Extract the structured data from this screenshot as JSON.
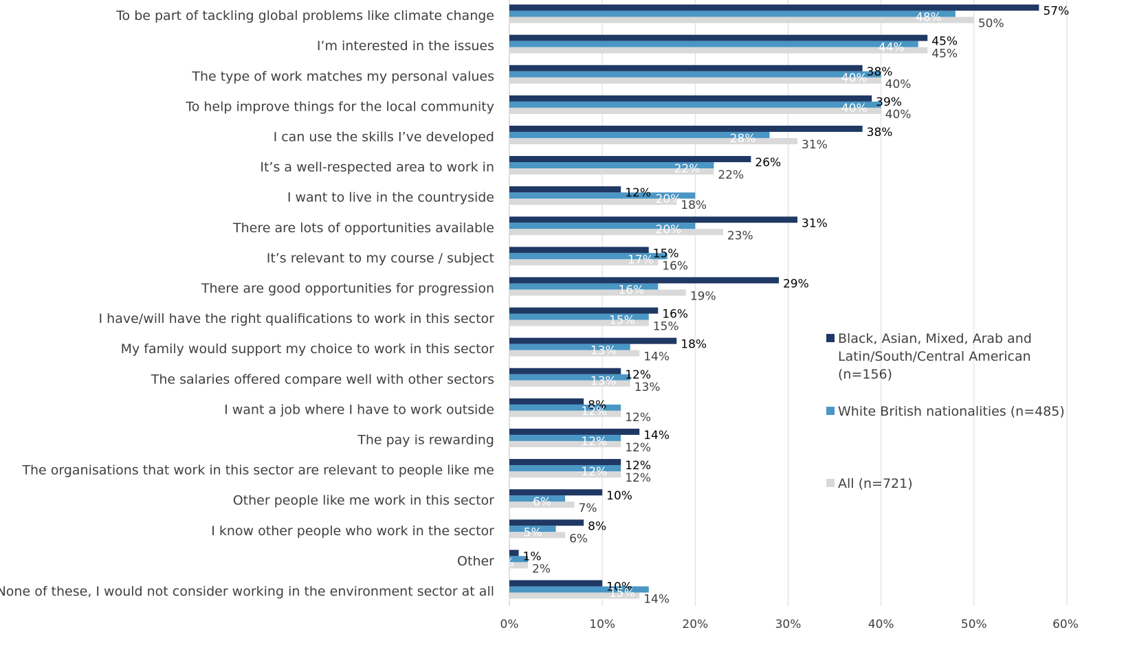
{
  "chart_data": {
    "type": "bar",
    "orientation": "horizontal",
    "categories": [
      "To be part of tackling global problems like climate change",
      "I’m interested in the issues",
      "The type of work matches my personal values",
      "To help improve things for the local community",
      "I can use the skills I’ve developed",
      "It’s a well-respected area to work in",
      "I want to live in the countryside",
      "There are lots of opportunities available",
      "It’s relevant to my course / subject",
      "There are good opportunities for progression",
      "I have/will have the right qualifications to work in this sector",
      "My family would support my choice to work in this sector",
      "The salaries offered compare well with other sectors",
      "I want a job where I have to work outside",
      "The pay is rewarding",
      "The organisations that work in this sector are relevant to people like me",
      "Other people like me work in this sector",
      "I know other people who work in the sector",
      "Other",
      "None of these, I would not consider working in the environment sector at all"
    ],
    "series": [
      {
        "name": "Black, Asian, Mixed, Arab and Latin/South/Central American (n=156)",
        "legend_lines": [
          "Black, Asian, Mixed, Arab and",
          "Latin/South/Central American",
          "(n=156)"
        ],
        "color": "#1f3864",
        "label_color": "#000000",
        "values": [
          57,
          45,
          38,
          39,
          38,
          26,
          12,
          31,
          15,
          29,
          16,
          18,
          12,
          8,
          14,
          12,
          10,
          8,
          1,
          10
        ],
        "labels": [
          "57%",
          "45%",
          "38%",
          "39%",
          "38%",
          "26%",
          "12%",
          "31%",
          "15%",
          "29%",
          "16%",
          "18%",
          "12%",
          "8%",
          "14%",
          "12%",
          "10%",
          "8%",
          "1%",
          "10%"
        ]
      },
      {
        "name": "White British nationalities (n=485)",
        "legend_lines": [
          "White British nationalities (n=485)"
        ],
        "color": "#4a96c4",
        "label_color": "#ffffff",
        "values": [
          48,
          44,
          40,
          40,
          28,
          22,
          20,
          20,
          17,
          16,
          15,
          13,
          13,
          12,
          12,
          12,
          6,
          5,
          2,
          15
        ],
        "labels": [
          "48%",
          "44%",
          "40%",
          "40%",
          "28%",
          "22%",
          "20%",
          "20%",
          "17%",
          "16%",
          "15%",
          "13%",
          "13%",
          "12%",
          "12%",
          "12%",
          "6%",
          "5%",
          "2%",
          "15%"
        ]
      },
      {
        "name": "All (n=721)",
        "legend_lines": [
          "All (n=721)"
        ],
        "color": "#d9d9d9",
        "label_color": "#404040",
        "values": [
          50,
          45,
          40,
          40,
          31,
          22,
          18,
          23,
          16,
          19,
          15,
          14,
          13,
          12,
          12,
          12,
          7,
          6,
          2,
          14
        ],
        "labels": [
          "50%",
          "45%",
          "40%",
          "40%",
          "31%",
          "22%",
          "18%",
          "23%",
          "16%",
          "19%",
          "15%",
          "14%",
          "13%",
          "12%",
          "12%",
          "12%",
          "7%",
          "6%",
          "2%",
          "14%"
        ]
      }
    ],
    "xlim": [
      0,
      60
    ],
    "xticks": [
      "0%",
      "10%",
      "20%",
      "30%",
      "40%",
      "50%",
      "60%"
    ],
    "title": "",
    "xlabel": "",
    "ylabel": "",
    "grid": "vertical",
    "legend": "right"
  }
}
